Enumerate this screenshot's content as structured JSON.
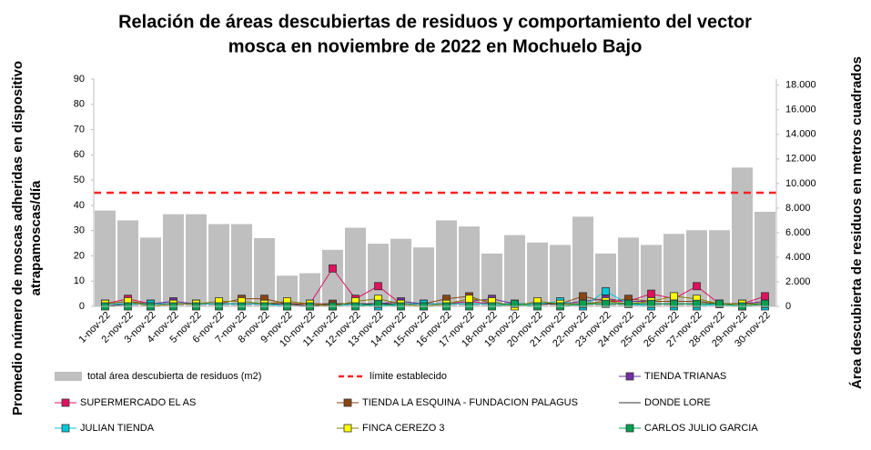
{
  "chart_data": {
    "type": "bar",
    "title": [
      "Relación de áreas descubiertas de residuos y comportamiento del vector",
      "mosca en noviembre de 2022 en Mochuelo Bajo"
    ],
    "ylabel": [
      "Promedio número de moscas adheridas en dispositivo",
      "atrapamoscas/día"
    ],
    "y2label": "Área descubierta de residuos en metros cuadrados",
    "categories": [
      "1-nov-22",
      "2-nov-22",
      "3-nov-22",
      "4-nov-22",
      "5-nov-22",
      "6-nov-22",
      "7-nov-22",
      "8-nov-22",
      "9-nov-22",
      "10-nov-22",
      "11-nov-22",
      "12-nov-22",
      "13-nov-22",
      "14-nov-22",
      "15-nov-22",
      "16-nov-22",
      "17-nov-22",
      "18-nov-22",
      "19-nov-22",
      "20-nov-22",
      "21-nov-22",
      "22-nov-22",
      "23-nov-22",
      "24-nov-22",
      "25-nov-22",
      "26-nov-22",
      "27-nov-22",
      "28-nov-22",
      "29-nov-22",
      "30-nov-22"
    ],
    "ylim": [
      0,
      90
    ],
    "yticks": [
      0,
      10,
      20,
      30,
      40,
      50,
      60,
      70,
      80,
      90
    ],
    "y2lim": [
      0,
      18500
    ],
    "y2ticks": [
      0,
      {
        "value": 2000,
        "label": "2.000"
      },
      {
        "value": 4000,
        "label": "4.000"
      },
      {
        "value": 6000,
        "label": "6.000"
      },
      {
        "value": 8000,
        "label": "8.000"
      },
      {
        "value": 10000,
        "label": "10.000"
      },
      {
        "value": 12000,
        "label": "12.000"
      },
      {
        "value": 14000,
        "label": "14.000"
      },
      {
        "value": 16000,
        "label": "16.000"
      },
      {
        "value": 18000,
        "label": "18.000"
      }
    ],
    "grid": false,
    "limit": {
      "name": "límite establecido",
      "value": 45,
      "color": "#ff2020"
    },
    "series": [
      {
        "name": "total área descubierta de residuos (m2)",
        "type": "bar",
        "axis": "y2",
        "color": "#bfbfbf",
        "values": [
          7800,
          7000,
          5600,
          7500,
          7500,
          6700,
          6700,
          5550,
          2500,
          2700,
          4600,
          6400,
          5100,
          5500,
          4800,
          7000,
          6500,
          4300,
          5800,
          5200,
          5000,
          7300,
          4300,
          5600,
          5000,
          5900,
          6200,
          6200,
          11300,
          7700
        ]
      },
      {
        "name": "TIENDA TRIANAS",
        "type": "line",
        "color": "#7030a0",
        "values": [
          1,
          1,
          1,
          2,
          1,
          1,
          1,
          1,
          1,
          1,
          1,
          1,
          1,
          2,
          1,
          1,
          2,
          3,
          1,
          1,
          1,
          2,
          3,
          2,
          2,
          2,
          2,
          1,
          1,
          2
        ]
      },
      {
        "name": "SUPERMERCADO EL AS",
        "type": "line",
        "color": "#e0115f",
        "values": [
          1,
          3,
          1,
          1,
          1,
          1,
          1,
          1,
          1,
          1,
          15,
          3,
          8,
          1,
          1,
          1,
          2,
          1,
          1,
          1,
          1,
          1,
          2,
          2,
          5,
          3,
          8,
          1,
          1,
          4
        ]
      },
      {
        "name": "TIENDA LA ESQUINA - FUNDACION PALAGUS",
        "type": "line",
        "color": "#8b4513",
        "values": [
          1,
          2,
          1,
          1,
          1,
          1,
          3,
          3,
          1,
          1,
          1,
          1,
          1,
          1,
          1,
          3,
          4,
          1,
          1,
          1,
          1,
          4,
          2,
          3,
          2,
          2,
          2,
          1,
          1,
          1
        ]
      },
      {
        "name": "DONDE LORE",
        "type": "line",
        "color": "#333333",
        "marker": false,
        "values": [
          0,
          1,
          1,
          1,
          1,
          1,
          1,
          1,
          1,
          0,
          1,
          1,
          1,
          1,
          1,
          1,
          1,
          1,
          1,
          1,
          1,
          1,
          1,
          1,
          1,
          1,
          1,
          1,
          1,
          1
        ]
      },
      {
        "name": "JULIAN TIENDA",
        "type": "line",
        "color": "#00c8d8",
        "values": [
          1,
          1,
          1,
          1,
          1,
          1,
          1,
          1,
          0,
          0,
          0,
          1,
          0,
          1,
          1,
          1,
          1,
          1,
          1,
          1,
          2,
          0,
          6,
          1,
          0,
          0,
          0,
          1,
          0,
          0
        ]
      },
      {
        "name": "FINCA CEREZO 3",
        "type": "line",
        "color": "#ffff00",
        "values": [
          1,
          2,
          0,
          1,
          1,
          2,
          2,
          1,
          2,
          1,
          0,
          2,
          3,
          1,
          0,
          1,
          3,
          2,
          0,
          2,
          1,
          1,
          2,
          1,
          2,
          4,
          3,
          1,
          1,
          1
        ]
      },
      {
        "name": "CARLOS JULIO GARCIA",
        "type": "line",
        "color": "#00a050",
        "values": [
          0,
          0,
          0,
          0,
          0,
          0,
          0,
          0,
          0,
          0,
          0,
          0,
          1,
          0,
          0,
          0,
          0,
          0,
          1,
          0,
          0,
          1,
          1,
          1,
          1,
          1,
          1,
          1,
          0,
          1
        ]
      }
    ]
  }
}
